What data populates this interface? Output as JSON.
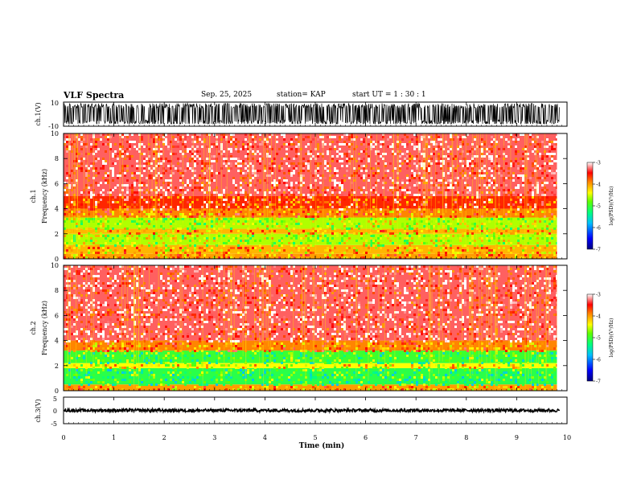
{
  "header": {
    "title": "VLF Spectra",
    "date": "Sep. 25, 2025",
    "station": "station= KAP",
    "start": "start  UT =   1 : 30 : 1"
  },
  "chart_data": [
    {
      "type": "line",
      "panel": "ch1-waveform",
      "ylabel": "ch.1(V)",
      "ylim": [
        -10,
        10
      ],
      "yticks": [
        "10",
        "-10"
      ],
      "xlim": [
        0,
        10
      ],
      "note": "dense voltage waveform, amplitude spanning approx -8 to +9 V",
      "envelope": {
        "min": -8,
        "max": 9
      }
    },
    {
      "type": "heatmap",
      "panel": "ch1-spectrogram",
      "ylabel": "ch.1 Frequency (kHz)",
      "ylim": [
        0,
        10
      ],
      "yticks": [
        "0",
        "2",
        "4",
        "6",
        "8",
        "10"
      ],
      "xlim": [
        0,
        9.8
      ],
      "colorbar": {
        "label": "log(PSD)(V²/Hz)",
        "ticks": [
          "-3",
          "-4",
          "-5",
          "-6",
          "-7"
        ],
        "range": [
          -7,
          -3
        ]
      },
      "bands": [
        {
          "f_low": 0.0,
          "f_high": 0.4,
          "level": -4.0
        },
        {
          "f_low": 0.4,
          "f_high": 1.1,
          "level": -4.1
        },
        {
          "f_low": 1.1,
          "f_high": 2.0,
          "level": -4.6
        },
        {
          "f_low": 2.0,
          "f_high": 2.4,
          "level": -4.1
        },
        {
          "f_low": 2.4,
          "f_high": 3.3,
          "level": -4.6
        },
        {
          "f_low": 3.3,
          "f_high": 4.0,
          "level": -3.9
        },
        {
          "f_low": 4.0,
          "f_high": 5.0,
          "level": -3.6
        },
        {
          "f_low": 5.0,
          "f_high": 10.0,
          "level": -3.3
        }
      ]
    },
    {
      "type": "heatmap",
      "panel": "ch2-spectrogram",
      "ylabel": "ch.2 Frequency (kHz)",
      "ylim": [
        0,
        10
      ],
      "yticks": [
        "0",
        "2",
        "4",
        "6",
        "8",
        "10"
      ],
      "xlim": [
        0,
        9.8
      ],
      "colorbar": {
        "label": "log(PSD)(V²/Hz)",
        "ticks": [
          "-3",
          "-4",
          "-5",
          "-6",
          "-7"
        ],
        "range": [
          -7,
          -3
        ]
      },
      "bands": [
        {
          "f_low": 0.0,
          "f_high": 0.5,
          "level": -4.0
        },
        {
          "f_low": 0.5,
          "f_high": 1.8,
          "level": -5.1
        },
        {
          "f_low": 1.8,
          "f_high": 2.2,
          "level": -4.4
        },
        {
          "f_low": 2.2,
          "f_high": 3.2,
          "level": -5.0
        },
        {
          "f_low": 3.2,
          "f_high": 4.0,
          "level": -3.9
        },
        {
          "f_low": 4.0,
          "f_high": 10.0,
          "level": -3.3
        }
      ]
    },
    {
      "type": "line",
      "panel": "ch3-waveform",
      "ylabel": "ch.3(V)",
      "ylim": [
        -5,
        5
      ],
      "yticks": [
        "5",
        "0",
        "-5"
      ],
      "xlim": [
        0,
        10
      ],
      "note": "flat trace near 0 V with small oscillation",
      "envelope": {
        "min": -0.6,
        "max": 0.6
      }
    }
  ],
  "xaxis": {
    "label": "Time (min)",
    "ticks": [
      "0",
      "1",
      "2",
      "3",
      "4",
      "5",
      "6",
      "7",
      "8",
      "9",
      "10"
    ],
    "range": [
      0,
      10
    ]
  }
}
